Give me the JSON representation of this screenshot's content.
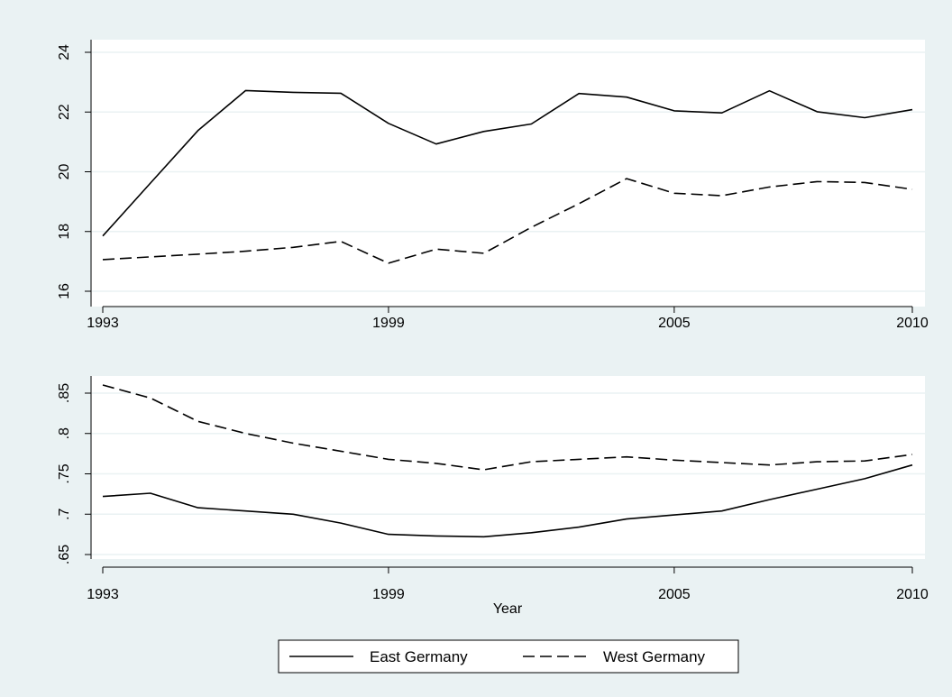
{
  "chart_data": [
    {
      "type": "line",
      "x": [
        1993,
        1994,
        1995,
        1996,
        1997,
        1998,
        1999,
        2000,
        2001,
        2002,
        2003,
        2004,
        2005,
        2006,
        2007,
        2008,
        2009,
        2010
      ],
      "xticks": [
        "1993",
        "1999",
        "2005",
        "2010"
      ],
      "xlim": [
        1993,
        2010
      ],
      "ylim": [
        16,
        24
      ],
      "yticks": [
        "16",
        "18",
        "20",
        "22",
        "24"
      ],
      "xlabel": "",
      "ylabel": "",
      "grid": true,
      "series": [
        {
          "name": "East Germany",
          "style": "solid",
          "values": [
            17.85,
            19.62,
            21.38,
            22.72,
            22.66,
            22.63,
            21.62,
            20.93,
            21.35,
            21.6,
            22.62,
            22.5,
            22.04,
            21.97,
            22.71,
            22.01,
            21.81,
            22.08
          ]
        },
        {
          "name": "West Germany",
          "style": "dashed",
          "values": [
            17.06,
            17.15,
            17.24,
            17.34,
            17.47,
            17.67,
            16.94,
            17.41,
            17.27,
            18.14,
            18.93,
            19.77,
            19.28,
            19.2,
            19.49,
            19.67,
            19.64,
            19.41
          ]
        }
      ]
    },
    {
      "type": "line",
      "x": [
        1993,
        1994,
        1995,
        1996,
        1997,
        1998,
        1999,
        2000,
        2001,
        2002,
        2003,
        2004,
        2005,
        2006,
        2007,
        2008,
        2009,
        2010
      ],
      "xticks": [
        "1993",
        "1999",
        "2005",
        "2010"
      ],
      "xlim": [
        1993,
        2010
      ],
      "ylim": [
        0.65,
        0.85
      ],
      "yticks": [
        ".65",
        ".7",
        ".75",
        ".8",
        ".85"
      ],
      "xlabel": "Year",
      "ylabel": "",
      "grid": true,
      "series": [
        {
          "name": "East Germany",
          "style": "solid",
          "values": [
            0.722,
            0.726,
            0.708,
            0.704,
            0.7,
            0.689,
            0.675,
            0.673,
            0.672,
            0.677,
            0.684,
            0.694,
            0.699,
            0.704,
            0.718,
            0.731,
            0.744,
            0.761
          ]
        },
        {
          "name": "West Germany",
          "style": "dashed",
          "values": [
            0.86,
            0.844,
            0.815,
            0.8,
            0.788,
            0.778,
            0.768,
            0.763,
            0.755,
            0.765,
            0.768,
            0.771,
            0.767,
            0.764,
            0.761,
            0.765,
            0.766,
            0.774
          ]
        }
      ]
    }
  ],
  "legend": {
    "position": "bottom",
    "entries": [
      {
        "label": "East Germany",
        "style": "solid"
      },
      {
        "label": "West Germany",
        "style": "dashed"
      }
    ]
  },
  "colors": {
    "background": "#eaf2f3",
    "plot_area": "#ffffff",
    "grid": "#eaf2f3",
    "line": "#000000"
  }
}
